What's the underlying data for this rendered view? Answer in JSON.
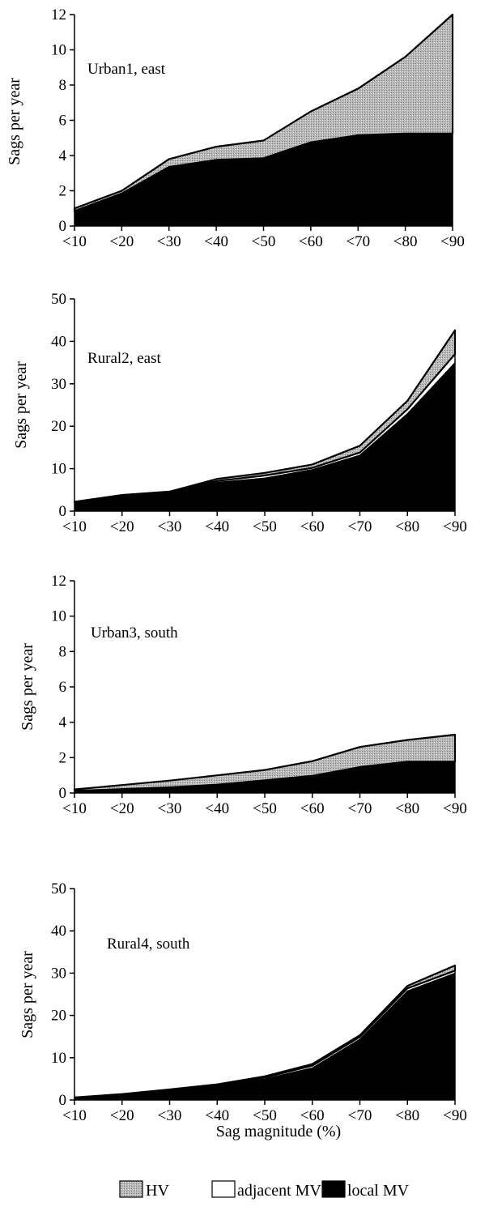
{
  "colors": {
    "hv": "#b8b8b8",
    "adjacent_mv": "#ffffff",
    "local_mv": "#000000"
  },
  "xlabel": "Sag magnitude (%)",
  "legend": [
    {
      "name": "HV",
      "color": "#b8b8b8",
      "pattern": "stipple"
    },
    {
      "name": "adjacent MV",
      "color": "#ffffff"
    },
    {
      "name": "local MV",
      "color": "#000000"
    }
  ],
  "chart_data": [
    {
      "type": "area",
      "stacked": true,
      "annotation": "Urban1, east",
      "ylabel": "Sags per year",
      "ylim": [
        0,
        12
      ],
      "yticks": [
        0,
        2,
        4,
        6,
        8,
        10,
        12
      ],
      "categories": [
        "<10",
        "<20",
        "<30",
        "<40",
        "<50",
        "<60",
        "<70",
        "<80",
        "<90"
      ],
      "series": [
        {
          "name": "local MV",
          "values": [
            0.8,
            1.8,
            3.3,
            3.7,
            3.8,
            4.7,
            5.1,
            5.2,
            5.2
          ]
        },
        {
          "name": "adjacent MV",
          "values": [
            0.05,
            0.05,
            0.05,
            0.05,
            0.05,
            0.05,
            0.05,
            0.05,
            0.05
          ]
        },
        {
          "name": "HV",
          "values": [
            0.15,
            0.15,
            0.45,
            0.75,
            1.0,
            1.75,
            2.65,
            4.35,
            6.75
          ]
        }
      ]
    },
    {
      "type": "area",
      "stacked": true,
      "annotation": "Rural2, east",
      "ylabel": "Sags per year",
      "ylim": [
        0,
        50
      ],
      "yticks": [
        0,
        10,
        20,
        30,
        40,
        50
      ],
      "categories": [
        "<10",
        "<20",
        "<30",
        "<40",
        "<50",
        "<60",
        "<70",
        "<80",
        "<90"
      ],
      "series": [
        {
          "name": "local MV",
          "values": [
            2.0,
            3.6,
            4.4,
            6.8,
            7.8,
            9.8,
            13.2,
            23.0,
            35.0
          ]
        },
        {
          "name": "adjacent MV",
          "values": [
            0.1,
            0.1,
            0.1,
            0.3,
            0.6,
            0.4,
            0.6,
            1.0,
            2.0
          ]
        },
        {
          "name": "HV",
          "values": [
            0.1,
            0.1,
            0.1,
            0.5,
            0.6,
            0.8,
            1.6,
            2.0,
            5.6
          ]
        }
      ]
    },
    {
      "type": "area",
      "stacked": true,
      "annotation": "Urban3, south",
      "ylabel": "Sags per year",
      "ylim": [
        0,
        12
      ],
      "yticks": [
        0,
        2,
        4,
        6,
        8,
        10,
        12
      ],
      "categories": [
        "<10",
        "<20",
        "<30",
        "<40",
        "<50",
        "<60",
        "<70",
        "<80",
        "<90"
      ],
      "series": [
        {
          "name": "local MV",
          "values": [
            0.1,
            0.2,
            0.3,
            0.45,
            0.7,
            0.95,
            1.45,
            1.75,
            1.75
          ]
        },
        {
          "name": "adjacent MV",
          "values": [
            0.02,
            0.02,
            0.02,
            0.02,
            0.02,
            0.02,
            0.02,
            0.02,
            0.02
          ]
        },
        {
          "name": "HV",
          "values": [
            0.08,
            0.23,
            0.38,
            0.53,
            0.58,
            0.83,
            1.13,
            1.23,
            1.53
          ]
        }
      ]
    },
    {
      "type": "area",
      "stacked": true,
      "annotation": "Rural4, south",
      "ylabel": "Sags per year",
      "ylim": [
        0,
        50
      ],
      "yticks": [
        0,
        10,
        20,
        30,
        40,
        50
      ],
      "categories": [
        "<10",
        "<20",
        "<30",
        "<40",
        "<50",
        "<60",
        "<70",
        "<80",
        "<90"
      ],
      "series": [
        {
          "name": "local MV",
          "values": [
            0.5,
            1.2,
            2.3,
            3.5,
            5.0,
            7.6,
            14.4,
            25.8,
            30.0
          ]
        },
        {
          "name": "adjacent MV",
          "values": [
            0.05,
            0.1,
            0.1,
            0.1,
            0.3,
            0.5,
            0.5,
            0.6,
            0.6
          ]
        },
        {
          "name": "HV",
          "values": [
            0.05,
            0.1,
            0.1,
            0.1,
            0.3,
            0.4,
            0.4,
            0.6,
            1.2
          ]
        }
      ]
    }
  ]
}
